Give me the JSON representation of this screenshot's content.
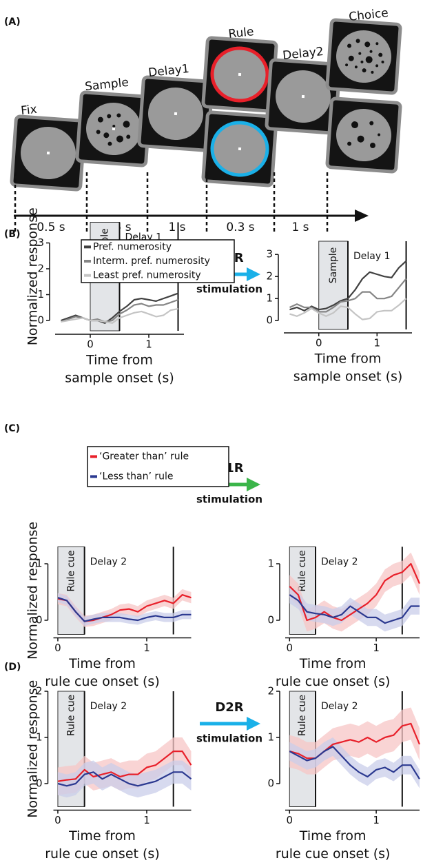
{
  "panel_a": {
    "label": "(A)",
    "epochs": [
      "Fix",
      "Sample",
      "Delay1",
      "Rule",
      "Delay2",
      "Choice"
    ],
    "durations": [
      "0.5 s",
      "0.5 s",
      "1 s",
      "0.3 s",
      "1 s"
    ]
  },
  "panel_labels": [
    "(B)",
    "(C)",
    "(D)"
  ],
  "arrows": [
    {
      "receptor": "D2R",
      "text": "stimulation",
      "color": "#1ab0e8"
    },
    {
      "receptor": "D1R",
      "text": "stimulation",
      "color": "#3bb54a"
    },
    {
      "receptor": "D2R",
      "text": "stimulation",
      "color": "#1ab0e8"
    }
  ],
  "chart_data": [
    {
      "type": "line",
      "ylabel": "Normalized response",
      "xlabel": [
        "Time from",
        "sample onset (s)"
      ],
      "xlim": [
        -0.6,
        1.6
      ],
      "ylim": [
        -0.4,
        3.8
      ],
      "xticks": [
        0,
        1
      ],
      "yticks": [
        0,
        1,
        2,
        3
      ],
      "shade": [
        0,
        0.5
      ],
      "vlines": [
        0.5,
        1.5
      ],
      "shade_label": "Sample",
      "period_label": "Delay 1",
      "legend": true,
      "x": [
        -0.5,
        -0.375,
        -0.25,
        -0.125,
        0,
        0.125,
        0.25,
        0.375,
        0.5,
        0.625,
        0.75,
        0.875,
        1,
        1.125,
        1.25,
        1.375,
        1.5
      ],
      "series": [
        {
          "name": "Pref. numerosity",
          "color": "#404040",
          "values": [
            0,
            0.1,
            0.2,
            0.1,
            0,
            0,
            -0.1,
            0.1,
            0.35,
            0.55,
            0.8,
            0.85,
            0.8,
            0.75,
            0.85,
            0.95,
            1.05
          ]
        },
        {
          "name": "Interm. pref. numerosity",
          "color": "#858585",
          "values": [
            -0.05,
            0.05,
            0.15,
            0.1,
            0,
            0.05,
            -0.05,
            0,
            0.25,
            0.4,
            0.6,
            0.65,
            0.55,
            0.6,
            0.6,
            0.7,
            0.8
          ]
        },
        {
          "name": "Least pref. numerosity",
          "color": "#c4c4c4",
          "values": [
            -0.05,
            0,
            0.05,
            0.1,
            0,
            0,
            -0.05,
            -0.1,
            0.1,
            0.2,
            0.3,
            0.35,
            0.25,
            0.15,
            0.2,
            0.4,
            0.45
          ]
        }
      ]
    },
    {
      "type": "line",
      "xlabel": [
        "Time from",
        "sample onset (s)"
      ],
      "xlim": [
        -0.6,
        1.6
      ],
      "ylim": [
        -0.4,
        3.6
      ],
      "xticks": [
        0,
        1
      ],
      "yticks": [
        0,
        1,
        2,
        3
      ],
      "shade": [
        0,
        0.5
      ],
      "vlines": [
        0.5,
        1.5
      ],
      "shade_label": "Sample",
      "period_label": "Delay 1",
      "legend": false,
      "x": [
        -0.5,
        -0.375,
        -0.25,
        -0.125,
        0,
        0.125,
        0.25,
        0.375,
        0.5,
        0.625,
        0.75,
        0.875,
        1,
        1.125,
        1.25,
        1.375,
        1.5
      ],
      "series": [
        {
          "color": "#404040",
          "values": [
            0.5,
            0.6,
            0.45,
            0.65,
            0.5,
            0.55,
            0.7,
            0.9,
            1.0,
            1.4,
            1.9,
            2.2,
            2.1,
            2.0,
            1.95,
            2.4,
            2.7
          ]
        },
        {
          "color": "#858585",
          "values": [
            0.6,
            0.75,
            0.6,
            0.6,
            0.4,
            0.4,
            0.6,
            0.85,
            0.9,
            1.0,
            1.3,
            1.3,
            1.0,
            1.0,
            1.1,
            1.5,
            1.9
          ]
        },
        {
          "color": "#c4c4c4",
          "values": [
            0.3,
            0.2,
            0.35,
            0.55,
            0.35,
            0.2,
            0.35,
            0.65,
            0.6,
            0.3,
            0.05,
            0.1,
            0.4,
            0.45,
            0.45,
            0.7,
            1.0
          ]
        }
      ]
    },
    {
      "type": "line",
      "ylabel": "Normalized response",
      "xlabel": [
        "Time from",
        "rule cue onset (s)"
      ],
      "xlim": [
        -0.05,
        1.5
      ],
      "ylim": [
        -0.25,
        1.3
      ],
      "xticks": [
        0,
        1
      ],
      "yticks": [
        0,
        1
      ],
      "shade": [
        0,
        0.3
      ],
      "vlines": [
        0.3,
        1.3
      ],
      "shade_label": "Rule cue",
      "period_label": "Delay 2",
      "legend": true,
      "x": [
        0,
        0.1,
        0.2,
        0.3,
        0.4,
        0.5,
        0.6,
        0.7,
        0.8,
        0.9,
        1.0,
        1.1,
        1.2,
        1.3,
        1.4,
        1.5
      ],
      "series": [
        {
          "name": "‘Greater than’ rule",
          "color": "#e8202a",
          "band_color": "#f7c6c6",
          "values": [
            0.38,
            0.35,
            0.15,
            -0.02,
            0.0,
            0.05,
            0.1,
            0.18,
            0.2,
            0.15,
            0.25,
            0.3,
            0.35,
            0.3,
            0.45,
            0.4
          ],
          "errors": [
            0.1,
            0.1,
            0.1,
            0.1,
            0.1,
            0.1,
            0.1,
            0.1,
            0.1,
            0.1,
            0.1,
            0.1,
            0.1,
            0.1,
            0.1,
            0.1
          ]
        },
        {
          "name": "‘Less than’ rule",
          "color": "#2b3990",
          "band_color": "#c9cdea",
          "values": [
            0.4,
            0.35,
            0.15,
            -0.02,
            0.02,
            0.05,
            0.05,
            0.05,
            0.02,
            0.0,
            0.05,
            0.08,
            0.05,
            0.05,
            0.1,
            0.1
          ],
          "errors": [
            0.08,
            0.08,
            0.08,
            0.08,
            0.08,
            0.08,
            0.08,
            0.08,
            0.08,
            0.08,
            0.08,
            0.08,
            0.08,
            0.08,
            0.08,
            0.08
          ]
        }
      ]
    },
    {
      "type": "line",
      "xlabel": [
        "Time from",
        "rule cue onset (s)"
      ],
      "xlim": [
        -0.05,
        1.5
      ],
      "ylim": [
        -0.25,
        1.3
      ],
      "xticks": [
        0,
        1
      ],
      "yticks": [
        0,
        1
      ],
      "shade": [
        0,
        0.3
      ],
      "vlines": [
        0.3,
        1.3
      ],
      "shade_label": "Rule cue",
      "period_label": "Delay 2",
      "legend": false,
      "x": [
        0,
        0.1,
        0.2,
        0.3,
        0.4,
        0.5,
        0.6,
        0.7,
        0.8,
        0.9,
        1.0,
        1.1,
        1.2,
        1.3,
        1.4,
        1.5
      ],
      "series": [
        {
          "color": "#e8202a",
          "band_color": "#f7c6c6",
          "values": [
            0.6,
            0.45,
            0.0,
            0.05,
            0.15,
            0.05,
            0.0,
            0.1,
            0.2,
            0.3,
            0.45,
            0.7,
            0.8,
            0.85,
            1.0,
            0.65
          ],
          "errors": [
            0.2,
            0.2,
            0.2,
            0.2,
            0.2,
            0.2,
            0.2,
            0.2,
            0.2,
            0.2,
            0.2,
            0.2,
            0.2,
            0.2,
            0.2,
            0.2
          ]
        },
        {
          "color": "#2b3990",
          "band_color": "#c9cdea",
          "values": [
            0.45,
            0.35,
            0.15,
            0.12,
            0.1,
            0.05,
            0.1,
            0.25,
            0.15,
            0.05,
            0.05,
            -0.05,
            0.0,
            0.05,
            0.25,
            0.25
          ],
          "errors": [
            0.15,
            0.15,
            0.15,
            0.15,
            0.15,
            0.15,
            0.15,
            0.15,
            0.15,
            0.15,
            0.15,
            0.15,
            0.15,
            0.15,
            0.15,
            0.15
          ]
        }
      ]
    },
    {
      "type": "line",
      "ylabel": "Normalized response",
      "xlabel": [
        "Time from",
        "rule cue onset (s)"
      ],
      "xlim": [
        -0.05,
        1.5
      ],
      "ylim": [
        -0.5,
        2.0
      ],
      "xticks": [
        0,
        1
      ],
      "yticks": [
        0,
        1,
        2
      ],
      "shade": [
        0,
        0.3
      ],
      "vlines": [
        0.3,
        1.3
      ],
      "shade_label": "Rule cue",
      "period_label": "Delay 2",
      "legend": false,
      "x": [
        0,
        0.1,
        0.2,
        0.3,
        0.4,
        0.5,
        0.6,
        0.7,
        0.8,
        0.9,
        1.0,
        1.1,
        1.2,
        1.3,
        1.4,
        1.5
      ],
      "series": [
        {
          "color": "#e8202a",
          "band_color": "#f7c6c6",
          "values": [
            0.05,
            0.08,
            0.1,
            0.3,
            0.15,
            0.2,
            0.25,
            0.15,
            0.2,
            0.2,
            0.35,
            0.4,
            0.55,
            0.7,
            0.7,
            0.4
          ],
          "errors": [
            0.3,
            0.3,
            0.3,
            0.3,
            0.3,
            0.3,
            0.3,
            0.3,
            0.3,
            0.3,
            0.3,
            0.3,
            0.3,
            0.3,
            0.3,
            0.3
          ]
        },
        {
          "color": "#2b3990",
          "band_color": "#c9cdea",
          "values": [
            0.0,
            -0.05,
            0.0,
            0.2,
            0.25,
            0.1,
            0.2,
            0.1,
            0.0,
            -0.05,
            0.0,
            0.05,
            0.15,
            0.25,
            0.25,
            0.1
          ],
          "errors": [
            0.25,
            0.25,
            0.25,
            0.25,
            0.25,
            0.25,
            0.25,
            0.25,
            0.25,
            0.25,
            0.25,
            0.25,
            0.25,
            0.25,
            0.25,
            0.25
          ]
        }
      ]
    },
    {
      "type": "line",
      "xlabel": [
        "Time from",
        "rule cue onset (s)"
      ],
      "xlim": [
        -0.05,
        1.5
      ],
      "ylim": [
        -0.5,
        2.0
      ],
      "xticks": [
        0,
        1
      ],
      "yticks": [
        0,
        1,
        2
      ],
      "shade": [
        0,
        0.3
      ],
      "vlines": [
        0.3,
        1.3
      ],
      "shade_label": "Rule cue",
      "period_label": "Delay 2",
      "legend": false,
      "x": [
        0,
        0.1,
        0.2,
        0.3,
        0.4,
        0.5,
        0.6,
        0.7,
        0.8,
        0.9,
        1.0,
        1.1,
        1.2,
        1.3,
        1.4,
        1.5
      ],
      "series": [
        {
          "color": "#e8202a",
          "band_color": "#f7c6c6",
          "values": [
            0.7,
            0.65,
            0.55,
            0.55,
            0.7,
            0.85,
            0.9,
            0.95,
            0.9,
            1.0,
            0.9,
            1.0,
            1.05,
            1.25,
            1.3,
            0.85
          ],
          "errors": [
            0.35,
            0.35,
            0.35,
            0.35,
            0.35,
            0.35,
            0.35,
            0.35,
            0.35,
            0.35,
            0.35,
            0.35,
            0.35,
            0.35,
            0.35,
            0.35
          ]
        },
        {
          "color": "#2b3990",
          "band_color": "#c9cdea",
          "values": [
            0.7,
            0.6,
            0.5,
            0.55,
            0.7,
            0.8,
            0.6,
            0.4,
            0.25,
            0.15,
            0.3,
            0.35,
            0.25,
            0.4,
            0.4,
            0.1
          ],
          "errors": [
            0.2,
            0.2,
            0.2,
            0.2,
            0.2,
            0.2,
            0.2,
            0.2,
            0.2,
            0.2,
            0.2,
            0.2,
            0.2,
            0.2,
            0.2,
            0.2
          ]
        }
      ]
    }
  ]
}
